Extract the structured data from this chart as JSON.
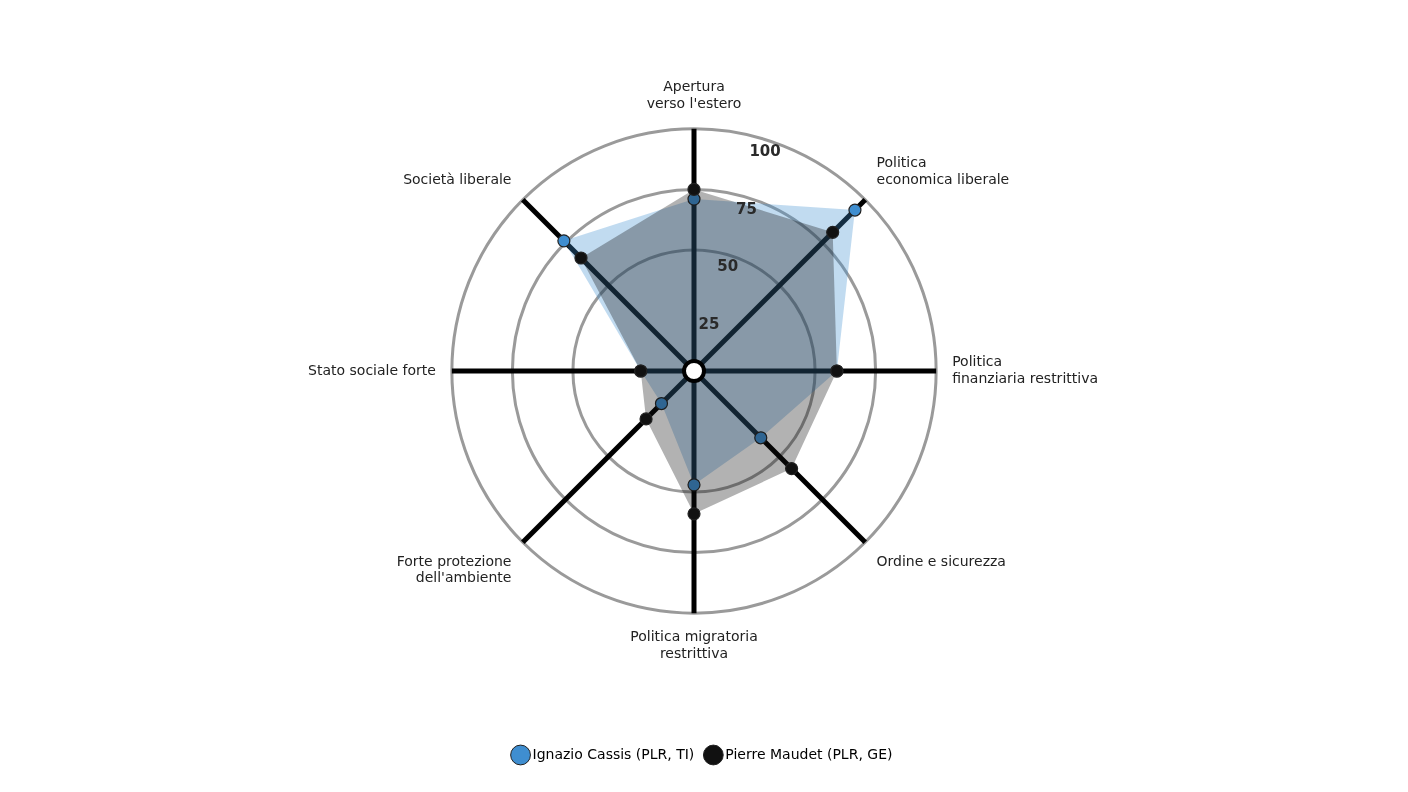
{
  "chart_data": {
    "type": "radar",
    "categories": [
      "Apertura\nverso l'estero",
      "Politica\neconomica liberale",
      "Politica\nfinanziaria restrittiva",
      "Ordine e sicurezza",
      "Politica migratoria\nrestrittiva",
      "Forte protezione\ndell'ambiente",
      "Stato sociale forte",
      "Società liberale"
    ],
    "series": [
      {
        "name": "Ignazio Cassis (PLR, TI)",
        "color": "#3f8ed0",
        "values": [
          71,
          94,
          59,
          39,
          47,
          19,
          22,
          76
        ]
      },
      {
        "name": "Pierre Maudet (PLR, GE)",
        "color": "#111111",
        "values": [
          75,
          81,
          59,
          57,
          59,
          28,
          22,
          66
        ]
      }
    ],
    "ylim": [
      0,
      100
    ],
    "yticks": [
      25,
      50,
      75,
      100
    ],
    "grid": true,
    "legend": "bottom",
    "marker": "circle"
  }
}
